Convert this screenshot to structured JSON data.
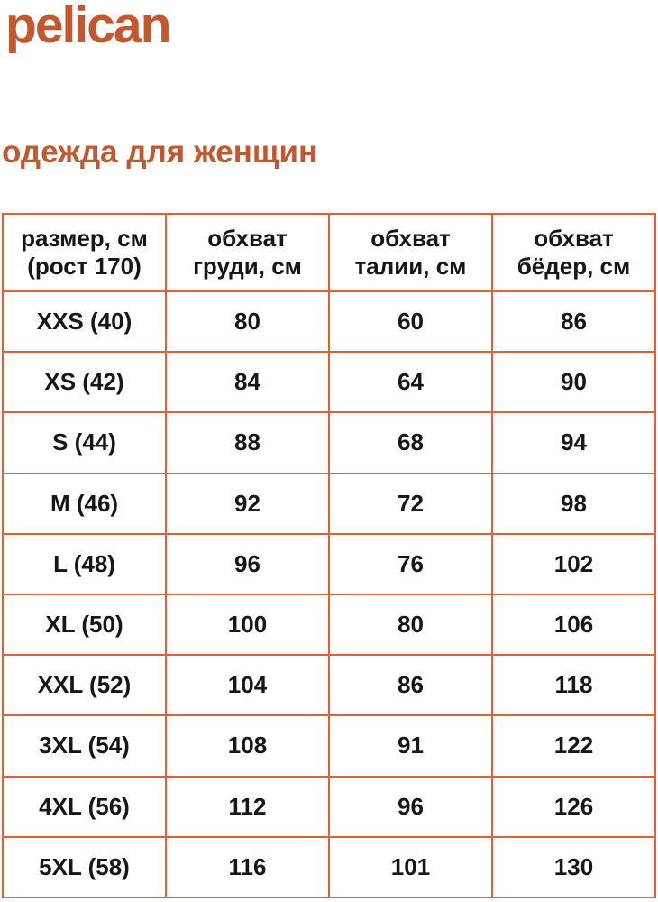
{
  "brand": {
    "logo": "pelican"
  },
  "heading": "одежда для женщин",
  "colors": {
    "accent": "#C3582F",
    "border": "#E06038",
    "text": "#161616"
  },
  "chart_data": {
    "type": "table",
    "title": "одежда для женщин",
    "columns": [
      {
        "line1": "размер, см",
        "line2": "(рост 170)"
      },
      {
        "line1": "обхват",
        "line2": "груди, см"
      },
      {
        "line1": "обхват",
        "line2": "талии, см"
      },
      {
        "line1": "обхват",
        "line2": "бёдер, см"
      }
    ],
    "rows": [
      [
        "XXS (40)",
        "80",
        "60",
        "86"
      ],
      [
        "XS (42)",
        "84",
        "64",
        "90"
      ],
      [
        "S (44)",
        "88",
        "68",
        "94"
      ],
      [
        "M (46)",
        "92",
        "72",
        "98"
      ],
      [
        "L (48)",
        "96",
        "76",
        "102"
      ],
      [
        "XL (50)",
        "100",
        "80",
        "106"
      ],
      [
        "XXL (52)",
        "104",
        "86",
        "118"
      ],
      [
        "3XL (54)",
        "108",
        "91",
        "122"
      ],
      [
        "4XL (56)",
        "112",
        "96",
        "126"
      ],
      [
        "5XL (58)",
        "116",
        "101",
        "130"
      ]
    ]
  }
}
